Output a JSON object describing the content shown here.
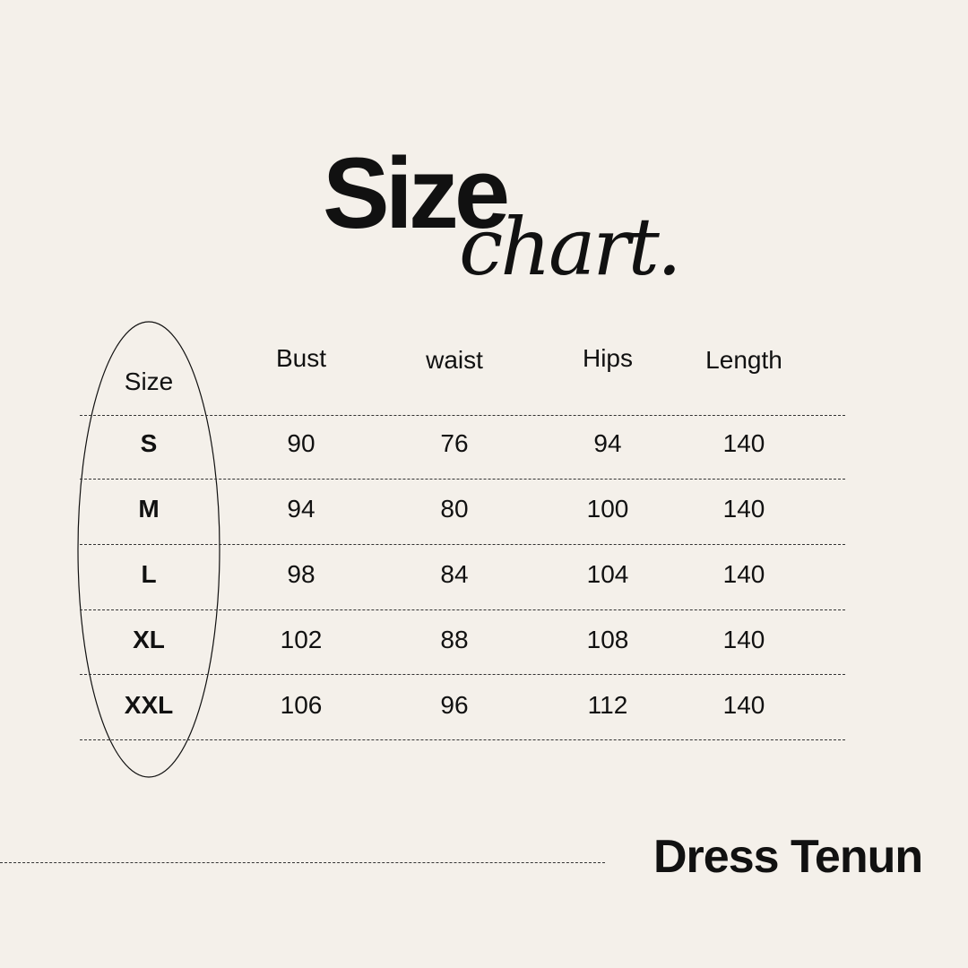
{
  "title": {
    "main": "Size",
    "script": "chart."
  },
  "table": {
    "headers": [
      "Size",
      "Bust",
      "waist",
      "Hips",
      "Length"
    ],
    "rows": [
      [
        "S",
        "90",
        "76",
        "94",
        "140"
      ],
      [
        "M",
        "94",
        "80",
        "100",
        "140"
      ],
      [
        "L",
        "98",
        "84",
        "104",
        "140"
      ],
      [
        "XL",
        "102",
        "88",
        "108",
        "140"
      ],
      [
        "XXL",
        "106",
        "96",
        "112",
        "140"
      ]
    ]
  },
  "footer": {
    "product_name": "Dress Tenun"
  },
  "colors": {
    "background": "#f4f0ea",
    "text": "#111111"
  }
}
